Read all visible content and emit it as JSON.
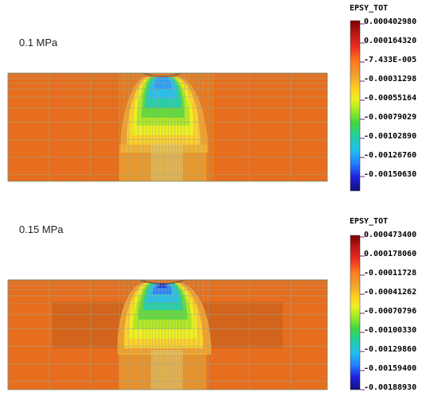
{
  "panels": [
    {
      "label": "0.1 MPa",
      "legend": {
        "title": "EPSY_TOT",
        "ticks": [
          "0.000402980",
          "0.000164320",
          "-7.433E-005",
          "-0.00031298",
          "-0.00055164",
          "-0.00079029",
          "-0.00102890",
          "-0.00126760",
          "-0.00150630"
        ]
      }
    },
    {
      "label": "0.15 MPa",
      "legend": {
        "title": "EPSY_TOT",
        "ticks": [
          "0.000473400",
          "0.000178060",
          "-0.00011728",
          "-0.00041262",
          "-0.00070796",
          "-0.00100330",
          "-0.00129860",
          "-0.00159400",
          "-0.00188930"
        ]
      }
    }
  ],
  "colormap": [
    "#7a0000",
    "#b01010",
    "#e02020",
    "#ff5a1a",
    "#ff8a20",
    "#f0a030",
    "#ffd020",
    "#f0f020",
    "#b8ec20",
    "#60e030",
    "#20d060",
    "#20d0b0",
    "#20b8f0",
    "#2070ff",
    "#1a20e0",
    "#10107a"
  ]
}
